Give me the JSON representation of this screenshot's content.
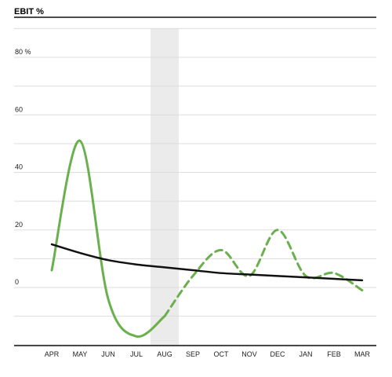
{
  "chart_data": {
    "type": "line",
    "title": "EBIT %",
    "xlabel": "",
    "ylabel": "",
    "categories": [
      "APR",
      "MAY",
      "JUN",
      "JUL",
      "AUG",
      "SEP",
      "OCT",
      "NOV",
      "DEC",
      "JAN",
      "FEB",
      "MAR"
    ],
    "y_tick_labels": [
      {
        "value": 80,
        "label": "80 %"
      },
      {
        "value": 60,
        "label": "60"
      },
      {
        "value": 40,
        "label": "40"
      },
      {
        "value": 20,
        "label": "20"
      },
      {
        "value": 0,
        "label": "0"
      }
    ],
    "ylim": [
      -20,
      90
    ],
    "gridlines_every": 10,
    "grid": true,
    "highlight_band": {
      "from": "JUL",
      "to": "AUG",
      "start_fraction": 0.5
    },
    "series": [
      {
        "style": "solid",
        "color": "#6ab04c",
        "x": [
          "APR",
          "MAY",
          "JUN",
          "JUL",
          "AUG"
        ],
        "values": [
          6,
          51,
          -4,
          -17,
          -10
        ]
      },
      {
        "style": "dashed",
        "color": "#6ab04c",
        "x": [
          "AUG",
          "SEP",
          "OCT",
          "NOV",
          "DEC",
          "JAN",
          "FEB",
          "MAR"
        ],
        "values": [
          -10,
          4,
          13,
          4,
          20,
          4,
          5,
          -1
        ]
      },
      {
        "style": "solid",
        "color": "#111111",
        "x": [
          "APR",
          "MAY",
          "JUN",
          "JUL",
          "AUG",
          "SEP",
          "OCT",
          "NOV",
          "DEC",
          "JAN",
          "FEB",
          "MAR"
        ],
        "values": [
          15,
          12,
          9.5,
          8,
          7,
          6,
          5,
          4.5,
          4,
          3.5,
          3,
          2.5
        ]
      }
    ]
  }
}
